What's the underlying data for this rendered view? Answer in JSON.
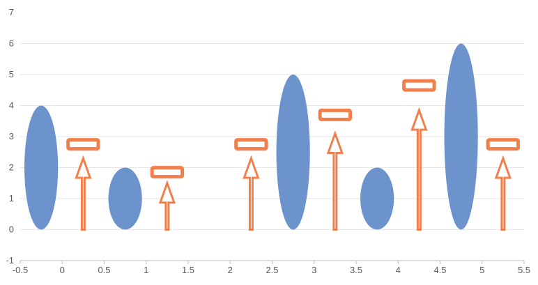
{
  "chart_data": {
    "type": "scatter",
    "title": "",
    "xlabel": "",
    "ylabel": "",
    "xlim": [
      -0.5,
      5.5
    ],
    "ylim": [
      -1,
      7
    ],
    "x_ticks": [
      "-0.5",
      "0",
      "0.5",
      "1",
      "1.5",
      "2",
      "2.5",
      "3",
      "3.5",
      "4",
      "4.5",
      "5",
      "5.5"
    ],
    "y_ticks": [
      "-1",
      "0",
      "1",
      "2",
      "3",
      "4",
      "5",
      "6",
      "7"
    ],
    "grid": true,
    "legend": "none",
    "colors": {
      "ellipse": "#6d93cc",
      "marker": "#f07f4c",
      "grid": "#e6e6e6",
      "axis": "#bfbfbf"
    },
    "series": [
      {
        "marker": "ellipse",
        "points": [
          {
            "x": -0.25,
            "y_center": 2.0,
            "height": 4.0
          },
          {
            "x": 0.75,
            "y_center": 1.0,
            "height": 2.0
          },
          {
            "x": 2.75,
            "y_center": 2.5,
            "height": 5.0
          },
          {
            "x": 3.75,
            "y_center": 1.0,
            "height": 2.0
          },
          {
            "x": 4.75,
            "y_center": 3.0,
            "height": 6.0
          }
        ]
      },
      {
        "marker": "up-arrow-with-bar",
        "points": [
          {
            "x": 0.25,
            "arrow_top": 2.3,
            "bar_y": 2.75
          },
          {
            "x": 1.25,
            "arrow_top": 1.5,
            "bar_y": 1.85
          },
          {
            "x": 2.25,
            "arrow_top": 2.3,
            "bar_y": 2.75
          },
          {
            "x": 3.25,
            "arrow_top": 3.1,
            "bar_y": 3.7
          },
          {
            "x": 4.25,
            "arrow_top": 3.85,
            "bar_y": 4.65
          },
          {
            "x": 5.25,
            "arrow_top": 2.3,
            "bar_y": 2.75
          }
        ]
      }
    ]
  }
}
